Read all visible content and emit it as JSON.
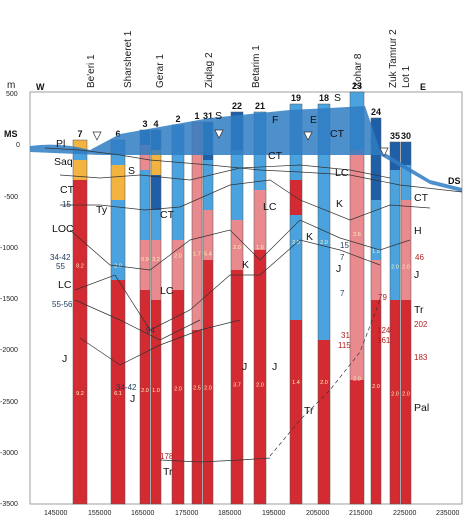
{
  "axes": {
    "y_unit": "m",
    "y_ticks": [
      "500",
      "0",
      "-500",
      "-1000",
      "-1500",
      "-2000",
      "-2500",
      "-3000",
      "-3500"
    ],
    "x_ticks": [
      "145000",
      "155000",
      "165000",
      "175000",
      "185000",
      "195000",
      "205000",
      "215000",
      "225000",
      "235000"
    ]
  },
  "directions": {
    "west": "W",
    "east": "E"
  },
  "sea": {
    "ms": "MS",
    "ds": "DS"
  },
  "wells": [
    "Be'eri 1",
    "Sharsheret 1",
    "Gerar 1",
    "Ziqlag 2",
    "Betarim 1",
    "Zohar 8",
    "Zuk Tamrur 2",
    "Lot 1"
  ],
  "column_counts": [
    "7",
    "6",
    "3",
    "4",
    "2",
    "1",
    "31",
    "22",
    "21",
    "19",
    "18",
    "23",
    "24",
    "35",
    "30"
  ],
  "left_units": [
    "Pl",
    "Saq",
    "CT",
    "15",
    "LOC",
    "34-42",
    "55",
    "LC",
    "55-56",
    "J"
  ],
  "blue_numbers": [
    "15",
    "34-42",
    "55",
    "55-56",
    "42-45",
    "94",
    "15",
    "7",
    "7"
  ],
  "red_numbers": [
    "46",
    "202",
    "183",
    "79",
    "124",
    "161",
    "31",
    "115",
    "178"
  ],
  "units_in_plot": [
    "S",
    "Ty",
    "S",
    "CT",
    "LC",
    "J",
    "Tr",
    "S",
    "F",
    "CT",
    "LC",
    "J",
    "K",
    "K",
    "J",
    "J",
    "CT",
    "LC",
    "K",
    "J",
    "Tr",
    "S",
    "CT",
    "S",
    "CT",
    "H",
    "J",
    "Tr",
    "Pal",
    "E"
  ],
  "inner_values": [
    "8.2",
    "9.2",
    "2.0",
    "6.1",
    "0.9",
    "2.0",
    "3.2",
    "1.0",
    "2.0",
    "2.0",
    "1.7",
    "2.5",
    "5.4",
    "2.0",
    "2.0",
    "3.7",
    "1.6",
    "2.0",
    "2.0",
    "1.4",
    "2.0",
    "2.0",
    "2.6",
    "2.0",
    "1.5",
    "2.0",
    "2.0",
    "2.0",
    "2.0",
    "2.0",
    "2.0",
    "2.0",
    "2.0",
    "2.0"
  ],
  "colors": {
    "dark_red": "#d42a32",
    "salmon": "#e88a8e",
    "light_blue": "#4aa3df",
    "dark_blue": "#1f5fa8",
    "orange": "#f2b341",
    "sea": "#2f7cc3"
  }
}
